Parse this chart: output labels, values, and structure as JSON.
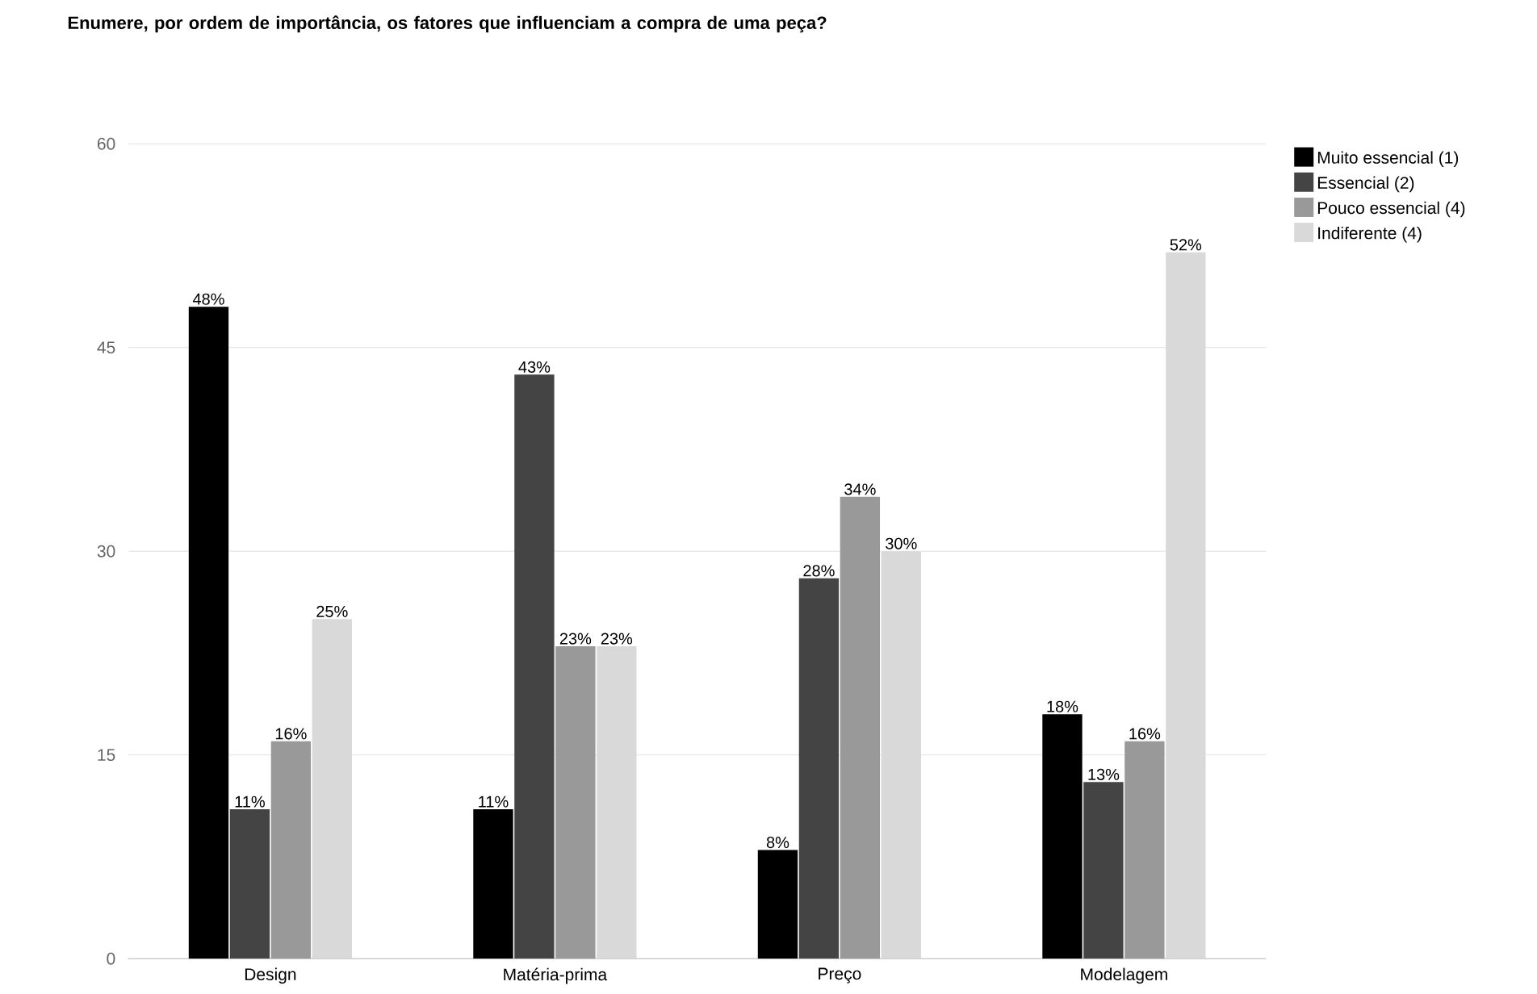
{
  "chart_data": {
    "type": "bar",
    "title": "Enumere, por ordem de importância, os fatores que influenciam a compra de uma peça?",
    "categories": [
      "Design",
      "Matéria-prima",
      "Preço",
      "Modelagem"
    ],
    "series": [
      {
        "name": "Muito essencial (1)",
        "color": "#000000",
        "values": [
          48,
          11,
          8,
          18
        ],
        "value_labels": [
          "48%",
          "11%",
          "8%",
          "18%"
        ]
      },
      {
        "name": "Essencial (2)",
        "color": "#444444",
        "values": [
          11,
          43,
          28,
          13
        ],
        "value_labels": [
          "11%",
          "43%",
          "28%",
          "13%"
        ]
      },
      {
        "name": "Pouco essencial (4)",
        "color": "#999999",
        "values": [
          16,
          23,
          34,
          16
        ],
        "value_labels": [
          "16%",
          "23%",
          "34%",
          "16%"
        ]
      },
      {
        "name": "Indiferente (4)",
        "color": "#d9d9d9",
        "values": [
          25,
          23,
          30,
          52
        ],
        "value_labels": [
          "25%",
          "23%",
          "30%",
          "52%"
        ]
      }
    ],
    "ylim": [
      0,
      60
    ],
    "yticks": [
      0,
      15,
      30,
      45,
      60
    ],
    "grid": "y",
    "legend": "top right"
  }
}
